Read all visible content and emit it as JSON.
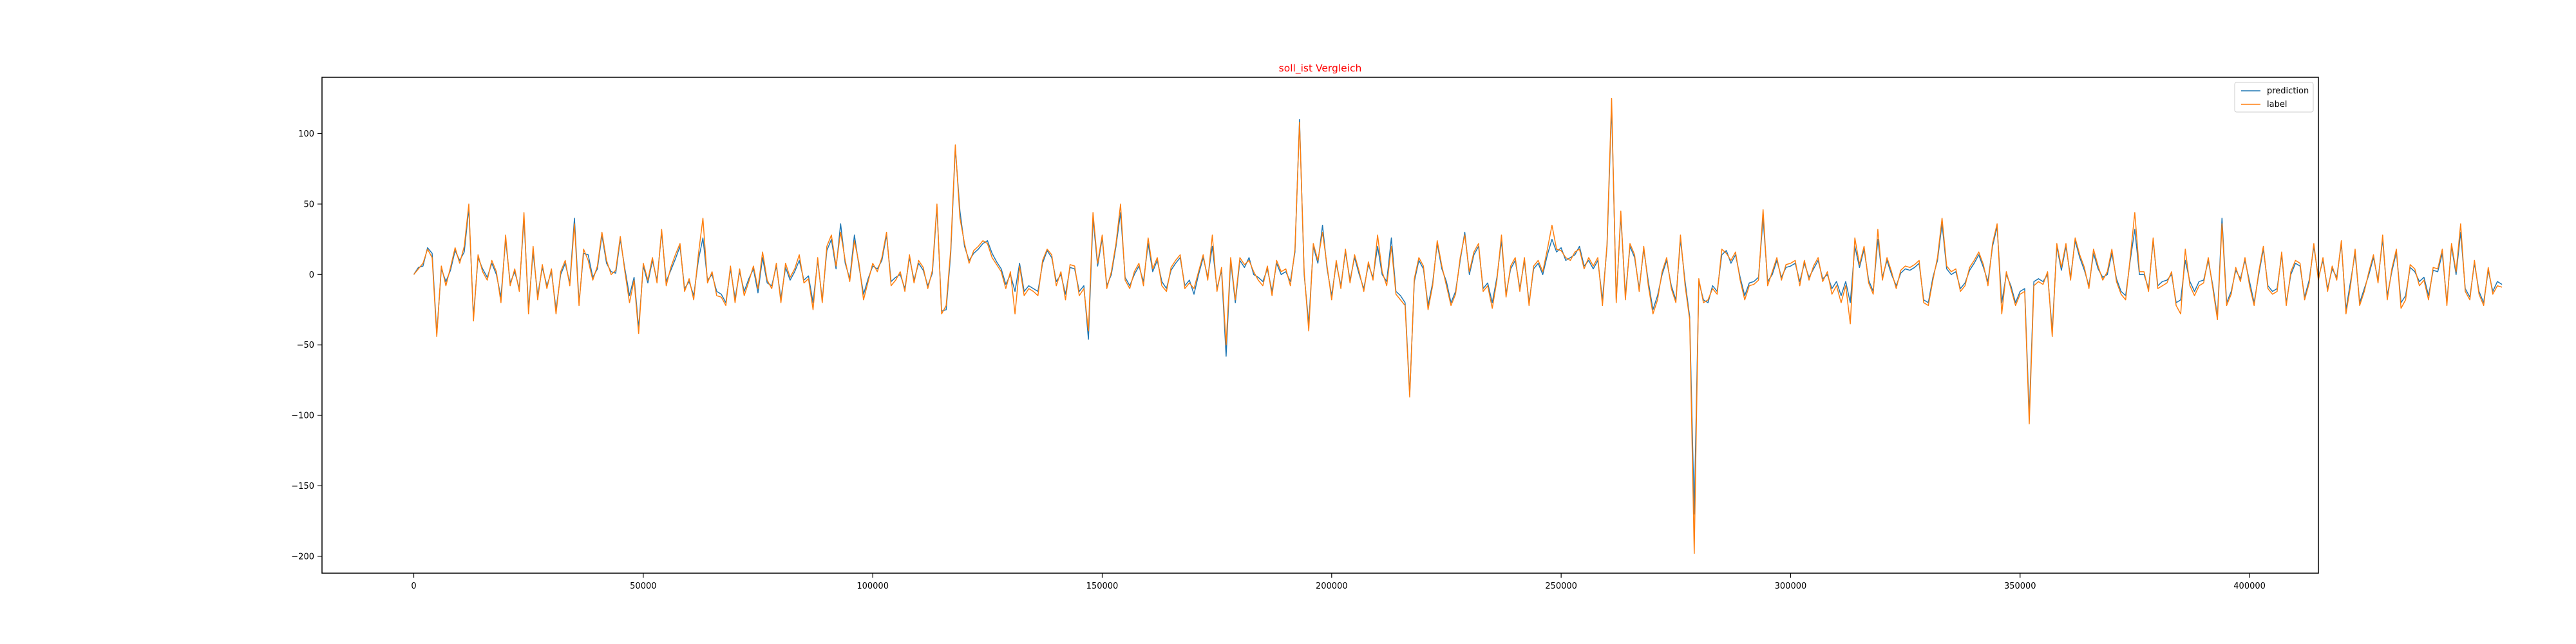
{
  "chart_data": {
    "type": "line",
    "title": "soll_ist Vergleich",
    "title_color": "#ff0000",
    "xlabel": "",
    "ylabel": "",
    "xlim": [
      -20000,
      415000
    ],
    "ylim": [
      -212,
      140
    ],
    "grid": false,
    "legend_position": "top-right",
    "x_ticks": [
      0,
      50000,
      100000,
      150000,
      200000,
      250000,
      300000,
      350000,
      400000
    ],
    "x_tick_labels": [
      "0",
      "50000",
      "100000",
      "150000",
      "200000",
      "250000",
      "300000",
      "350000",
      "400000"
    ],
    "y_ticks": [
      -200,
      -150,
      -100,
      -50,
      0,
      50,
      100
    ],
    "y_tick_labels": [
      "−200",
      "−150",
      "−100",
      "−50",
      "0",
      "50",
      "100"
    ],
    "x_start": 0,
    "x_step": 1000,
    "series": [
      {
        "name": "prediction",
        "color": "#1f77b4",
        "values": [
          0,
          5,
          6,
          19,
          15,
          -42,
          4,
          -5,
          3,
          17,
          10,
          16,
          47,
          -30,
          12,
          4,
          -2,
          8,
          0,
          -16,
          25,
          -6,
          2,
          -10,
          40,
          -24,
          16,
          -15,
          5,
          -8,
          2,
          -25,
          0,
          8,
          -6,
          40,
          -20,
          15,
          14,
          -2,
          4,
          28,
          8,
          2,
          1,
          25,
          4,
          -15,
          -2,
          -38,
          6,
          -6,
          10,
          -4,
          30,
          -5,
          3,
          11,
          20,
          -10,
          -5,
          -15,
          10,
          26,
          -4,
          0,
          -12,
          -14,
          -20,
          4,
          -17,
          2,
          -12,
          -3,
          4,
          -13,
          12,
          -6,
          -8,
          6,
          -17,
          5,
          -4,
          2,
          10,
          -4,
          -1,
          -20,
          10,
          -18,
          17,
          25,
          4,
          36,
          8,
          -3,
          28,
          6,
          -14,
          -3,
          6,
          4,
          10,
          28,
          -5,
          -2,
          0,
          -10,
          12,
          -4,
          8,
          3,
          -8,
          1,
          48,
          -26,
          -25,
          15,
          90,
          45,
          20,
          10,
          15,
          18,
          22,
          24,
          15,
          9,
          4,
          -7,
          0,
          -12,
          8,
          -12,
          -8,
          -10,
          -12,
          8,
          17,
          12,
          -5,
          0,
          -14,
          5,
          4,
          -12,
          -8,
          -46,
          40,
          6,
          26,
          -8,
          0,
          20,
          44,
          -2,
          -8,
          0,
          6,
          -5,
          22,
          2,
          10,
          -5,
          -10,
          3,
          8,
          12,
          -8,
          -4,
          -14,
          0,
          12,
          -2,
          20,
          -10,
          3,
          -58,
          10,
          -20,
          10,
          5,
          12,
          0,
          -2,
          -5,
          4,
          -12,
          8,
          0,
          2,
          -5,
          16,
          110,
          0,
          -35,
          20,
          8,
          35,
          4,
          -15,
          8,
          -8,
          16,
          -4,
          12,
          0,
          -10,
          7,
          -2,
          20,
          0,
          -5,
          26,
          -12,
          -15,
          -20,
          -85,
          -5,
          10,
          4,
          -22,
          -6,
          22,
          4,
          -5,
          -20,
          -12,
          10,
          30,
          0,
          14,
          20,
          -10,
          -6,
          -20,
          -2,
          24,
          -14,
          4,
          10,
          -10,
          10,
          -20,
          4,
          8,
          0,
          14,
          25,
          16,
          19,
          10,
          12,
          14,
          20,
          6,
          10,
          4,
          10,
          -18,
          20,
          120,
          -18,
          42,
          -15,
          20,
          12,
          -10,
          18,
          -5,
          -25,
          -15,
          0,
          10,
          -8,
          -18,
          25,
          -5,
          -30,
          -170,
          -5,
          -18,
          -20,
          -8,
          -12,
          14,
          17,
          8,
          14,
          -2,
          -15,
          -6,
          -5,
          -2,
          40,
          -5,
          0,
          10,
          -2,
          5,
          6,
          8,
          -5,
          8,
          -2,
          4,
          10,
          -3,
          0,
          -10,
          -5,
          -15,
          -5,
          -20,
          20,
          5,
          18,
          -4,
          -12,
          25,
          -2,
          10,
          0,
          -8,
          1,
          4,
          3,
          5,
          8,
          -18,
          -20,
          -2,
          10,
          36,
          4,
          0,
          2,
          -10,
          -6,
          3,
          8,
          14,
          5,
          -5,
          20,
          34,
          -20,
          0,
          -8,
          -20,
          -12,
          -10,
          -100,
          -5,
          -3,
          -5,
          0,
          -40,
          20,
          3,
          20,
          -2,
          24,
          12,
          3,
          -8,
          15,
          4,
          -2,
          0,
          15,
          -3,
          -12,
          -15,
          10,
          32,
          0,
          0,
          -10,
          24,
          -8,
          -5,
          -4,
          0,
          -20,
          -18,
          10,
          -5,
          -12,
          -5,
          -4,
          10,
          -8,
          -30,
          40,
          -20,
          -12,
          3,
          -3,
          10,
          -5,
          -20,
          0,
          18,
          -8,
          -12,
          -10,
          14,
          -20,
          0,
          8,
          6,
          -16,
          -4,
          20,
          -2,
          10,
          -10,
          4,
          -2,
          22,
          -25,
          -5,
          15,
          -20,
          -10,
          0,
          12,
          -4,
          25,
          -15,
          2,
          16,
          -20,
          -15,
          5,
          2,
          -5,
          -2,
          -15,
          3,
          2,
          15,
          -20,
          20,
          0,
          30,
          -10,
          -16,
          8,
          -12,
          -20,
          3,
          -12,
          -5,
          -7
        ],
        "length_note_excluded": true
      },
      {
        "name": "label",
        "color": "#ff7f0e",
        "values": [
          0,
          4,
          8,
          18,
          12,
          -44,
          6,
          -8,
          5,
          19,
          8,
          20,
          50,
          -33,
          14,
          2,
          -4,
          10,
          2,
          -20,
          28,
          -8,
          4,
          -12,
          44,
          -28,
          20,
          -18,
          7,
          -10,
          4,
          -28,
          2,
          10,
          -8,
          36,
          -22,
          18,
          10,
          -4,
          6,
          30,
          10,
          0,
          3,
          27,
          2,
          -20,
          -4,
          -42,
          8,
          -4,
          12,
          -6,
          32,
          -8,
          5,
          14,
          22,
          -12,
          -3,
          -18,
          14,
          40,
          -6,
          2,
          -15,
          -16,
          -22,
          6,
          -20,
          4,
          -15,
          -5,
          6,
          -10,
          16,
          -4,
          -10,
          8,
          -20,
          8,
          -2,
          4,
          14,
          -6,
          -3,
          -25,
          12,
          -20,
          20,
          28,
          6,
          30,
          10,
          -5,
          24,
          8,
          -18,
          -5,
          8,
          2,
          12,
          30,
          -8,
          -4,
          2,
          -12,
          14,
          -6,
          10,
          5,
          -10,
          3,
          50,
          -28,
          -22,
          18,
          92,
          40,
          22,
          8,
          17,
          20,
          24,
          22,
          12,
          7,
          2,
          -10,
          2,
          -28,
          6,
          -15,
          -10,
          -12,
          -15,
          10,
          18,
          14,
          -8,
          2,
          -18,
          7,
          6,
          -15,
          -10,
          -40,
          44,
          8,
          28,
          -10,
          2,
          22,
          50,
          -4,
          -10,
          2,
          8,
          -8,
          26,
          4,
          12,
          -8,
          -12,
          5,
          10,
          14,
          -10,
          -6,
          -10,
          2,
          14,
          -4,
          28,
          -12,
          5,
          -50,
          12,
          -18,
          12,
          7,
          10,
          2,
          -4,
          -8,
          6,
          -15,
          10,
          2,
          4,
          -8,
          18,
          108,
          2,
          -40,
          22,
          10,
          30,
          6,
          -18,
          10,
          -10,
          18,
          -6,
          14,
          2,
          -12,
          9,
          -4,
          28,
          2,
          -8,
          20,
          -14,
          -18,
          -22,
          -87,
          -3,
          12,
          6,
          -25,
          -8,
          24,
          6,
          -8,
          -22,
          -14,
          12,
          28,
          2,
          16,
          22,
          -12,
          -8,
          -24,
          -4,
          28,
          -16,
          6,
          12,
          -12,
          12,
          -22,
          6,
          10,
          2,
          18,
          35,
          18,
          17,
          12,
          10,
          16,
          18,
          4,
          12,
          6,
          12,
          -22,
          22,
          125,
          -20,
          45,
          -18,
          22,
          14,
          -12,
          20,
          -8,
          -28,
          -18,
          2,
          12,
          -10,
          -20,
          28,
          -8,
          -32,
          -198,
          -3,
          -20,
          -18,
          -10,
          -14,
          18,
          15,
          10,
          16,
          -4,
          -18,
          -8,
          -7,
          -4,
          46,
          -8,
          2,
          12,
          -4,
          7,
          8,
          10,
          -8,
          10,
          -4,
          6,
          12,
          -5,
          2,
          -14,
          -8,
          -20,
          -8,
          -35,
          26,
          7,
          20,
          -6,
          -14,
          32,
          -4,
          12,
          2,
          -10,
          3,
          6,
          5,
          7,
          10,
          -20,
          -22,
          -4,
          12,
          40,
          6,
          2,
          4,
          -12,
          -8,
          5,
          10,
          16,
          7,
          -8,
          22,
          36,
          -28,
          2,
          -10,
          -22,
          -14,
          -12,
          -106,
          -8,
          -5,
          -7,
          2,
          -44,
          22,
          5,
          22,
          -4,
          26,
          14,
          5,
          -10,
          18,
          6,
          -4,
          2,
          18,
          -5,
          -14,
          -18,
          12,
          44,
          2,
          2,
          -12,
          26,
          -10,
          -8,
          -6,
          2,
          -22,
          -28,
          18,
          -8,
          -15,
          -8,
          -6,
          12,
          -10,
          -32,
          36,
          -22,
          -14,
          5,
          -5,
          12,
          -8,
          -22,
          2,
          20,
          -10,
          -14,
          -12,
          16,
          -22,
          2,
          10,
          8,
          -18,
          -6,
          22,
          -4,
          12,
          -12,
          6,
          -4,
          24,
          -28,
          -8,
          18,
          -22,
          -12,
          2,
          14,
          -6,
          28,
          -18,
          4,
          18,
          -24,
          -18,
          7,
          4,
          -8,
          -4,
          -18,
          5,
          4,
          18,
          -22,
          22,
          2,
          36,
          -12,
          -18,
          10,
          -14,
          -22,
          5,
          -14,
          -8,
          -9
        ]
      }
    ]
  }
}
